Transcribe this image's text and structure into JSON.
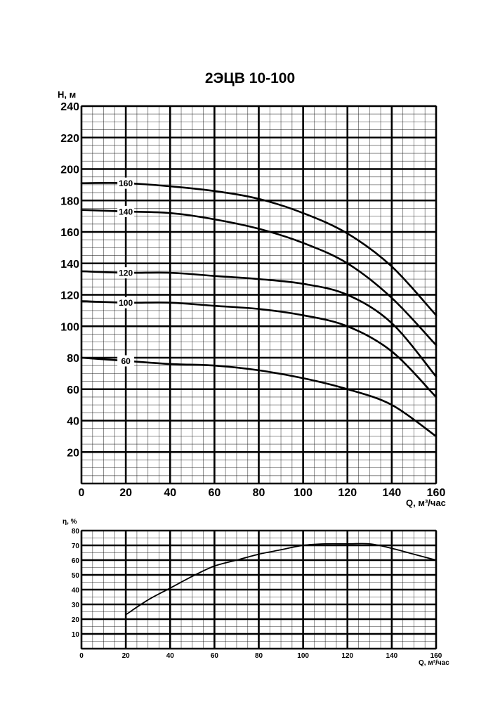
{
  "chart_data": [
    {
      "type": "line",
      "title": "2ЭЦВ 10-100",
      "xlabel": "Q, м³/час",
      "ylabel": "H, м",
      "xlim": [
        0,
        160
      ],
      "ylim": [
        0,
        240
      ],
      "x_ticks": [
        "0",
        "20",
        "40",
        "60",
        "80",
        "100",
        "120",
        "140",
        "160"
      ],
      "y_ticks": [
        "20",
        "40",
        "60",
        "80",
        "100",
        "120",
        "140",
        "160",
        "180",
        "200",
        "220",
        "240"
      ],
      "grid": true,
      "series": [
        {
          "name": "160",
          "x": [
            0,
            20,
            40,
            60,
            80,
            100,
            120,
            140,
            160
          ],
          "y": [
            191,
            191,
            189,
            186,
            181,
            172,
            159,
            138,
            107
          ],
          "label_x": 20
        },
        {
          "name": "140",
          "x": [
            0,
            20,
            40,
            60,
            80,
            100,
            120,
            140,
            160
          ],
          "y": [
            174,
            173,
            172,
            168,
            162,
            153,
            140,
            118,
            88
          ],
          "label_x": 20
        },
        {
          "name": "120",
          "x": [
            0,
            20,
            40,
            60,
            80,
            100,
            120,
            140,
            160
          ],
          "y": [
            135,
            134,
            134,
            132,
            130,
            127,
            120,
            102,
            68
          ],
          "label_x": 20
        },
        {
          "name": "100",
          "x": [
            0,
            20,
            40,
            60,
            80,
            100,
            120,
            140,
            160
          ],
          "y": [
            116,
            115,
            115,
            113,
            111,
            107,
            100,
            84,
            55
          ],
          "label_x": 20
        },
        {
          "name": "60",
          "x": [
            0,
            20,
            40,
            60,
            80,
            100,
            120,
            140,
            160
          ],
          "y": [
            80,
            78,
            76,
            75,
            72,
            67,
            60,
            50,
            30
          ],
          "label_x": 20
        }
      ]
    },
    {
      "type": "line",
      "title": "",
      "xlabel": "Q, м³/час",
      "ylabel": "η, %",
      "xlim": [
        0,
        160
      ],
      "ylim": [
        0,
        80
      ],
      "x_ticks": [
        "0",
        "20",
        "40",
        "60",
        "80",
        "100",
        "120",
        "140",
        "160"
      ],
      "y_ticks": [
        "10",
        "20",
        "30",
        "40",
        "50",
        "60",
        "70",
        "80"
      ],
      "grid": true,
      "series": [
        {
          "x": [
            20,
            30,
            40,
            50,
            60,
            70,
            80,
            90,
            100,
            110,
            120,
            130,
            140,
            150,
            160
          ],
          "y": [
            23,
            33,
            41,
            49,
            56,
            60,
            64,
            67,
            70,
            71,
            71,
            71,
            68,
            64,
            60
          ]
        }
      ]
    }
  ]
}
